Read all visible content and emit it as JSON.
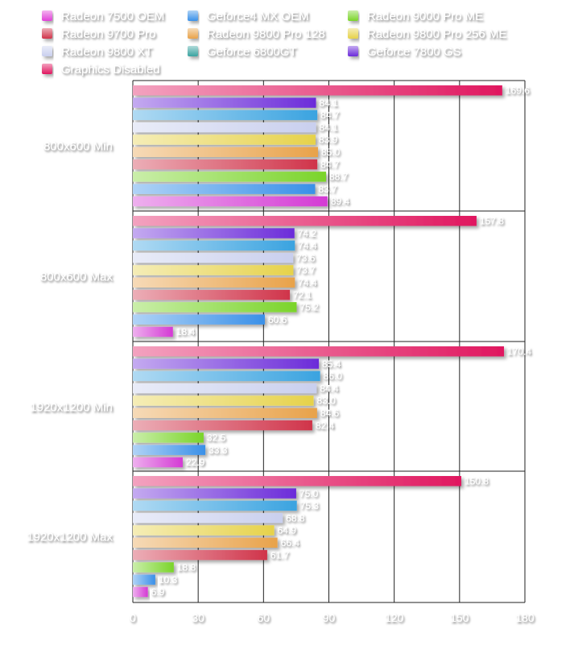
{
  "chart_data": {
    "type": "bar",
    "orientation": "horizontal",
    "title": "",
    "xlabel": "",
    "ylabel": "",
    "xlim": [
      0,
      180
    ],
    "x_ticks": [
      0,
      30,
      60,
      90,
      120,
      150,
      180
    ],
    "grid": true,
    "legend_position": "top",
    "categories": [
      "800x600 Min",
      "800x600 Max",
      "1920x1200 Min",
      "1920x1200 Max"
    ],
    "series": [
      {
        "name": "Graphics Disabled",
        "color": "#e0175f",
        "values": [
          169.6,
          157.8,
          170.4,
          150.8
        ]
      },
      {
        "name": "Geforce 7800 GS",
        "color": "#6b2bd9",
        "values": [
          84.1,
          74.2,
          85.4,
          75.0
        ]
      },
      {
        "name": "Geforce 6800GT",
        "color": "#3aa3e0",
        "values": [
          84.7,
          74.4,
          86.0,
          75.3
        ]
      },
      {
        "name": "Radeon 9800 XT",
        "color": "#c9cfee",
        "values": [
          84.1,
          73.6,
          84.4,
          68.8
        ]
      },
      {
        "name": "Radeon 9800 Pro 256 ME",
        "color": "#e6d24a",
        "values": [
          83.9,
          73.7,
          83.0,
          64.9
        ]
      },
      {
        "name": "Radeon 9800 Pro 128",
        "color": "#e8a24a",
        "values": [
          85.0,
          74.4,
          84.6,
          66.4
        ]
      },
      {
        "name": "Radeon 9700 Pro",
        "color": "#d0344a",
        "values": [
          84.7,
          72.1,
          82.4,
          61.7
        ]
      },
      {
        "name": "Radeon 9000 Pro ME",
        "color": "#7ad42a",
        "values": [
          88.7,
          75.2,
          32.5,
          18.8
        ]
      },
      {
        "name": "Geforce4 MX OEM",
        "color": "#3a90e8",
        "values": [
          83.7,
          60.6,
          33.3,
          10.3
        ]
      },
      {
        "name": "Radeon 7500 OEM",
        "color": "#d43ad4",
        "values": [
          89.4,
          18.4,
          22.9,
          6.9
        ]
      }
    ]
  },
  "legend": {
    "entries": [
      {
        "label": "Radeon 7500 OEM",
        "color": "#e040d8"
      },
      {
        "label": "Geforce4 MX OEM",
        "color": "#3a90e8"
      },
      {
        "label": "Radeon 9000 Pro ME",
        "color": "#7ad42a"
      },
      {
        "label": "Radeon 9700 Pro",
        "color": "#d0344a"
      },
      {
        "label": "Radeon 9800 Pro 128",
        "color": "#e8a24a"
      },
      {
        "label": "Radeon 9800 Pro 256 ME",
        "color": "#e6d24a"
      },
      {
        "label": "Radeon 9800 XT",
        "color": "#c9cfee"
      },
      {
        "label": "Geforce 6800GT",
        "color": "#3aa3a0"
      },
      {
        "label": "Geforce 7800 GS",
        "color": "#6b2bd9"
      },
      {
        "label": "Graphics Disabled",
        "color": "#e0175f"
      }
    ]
  }
}
